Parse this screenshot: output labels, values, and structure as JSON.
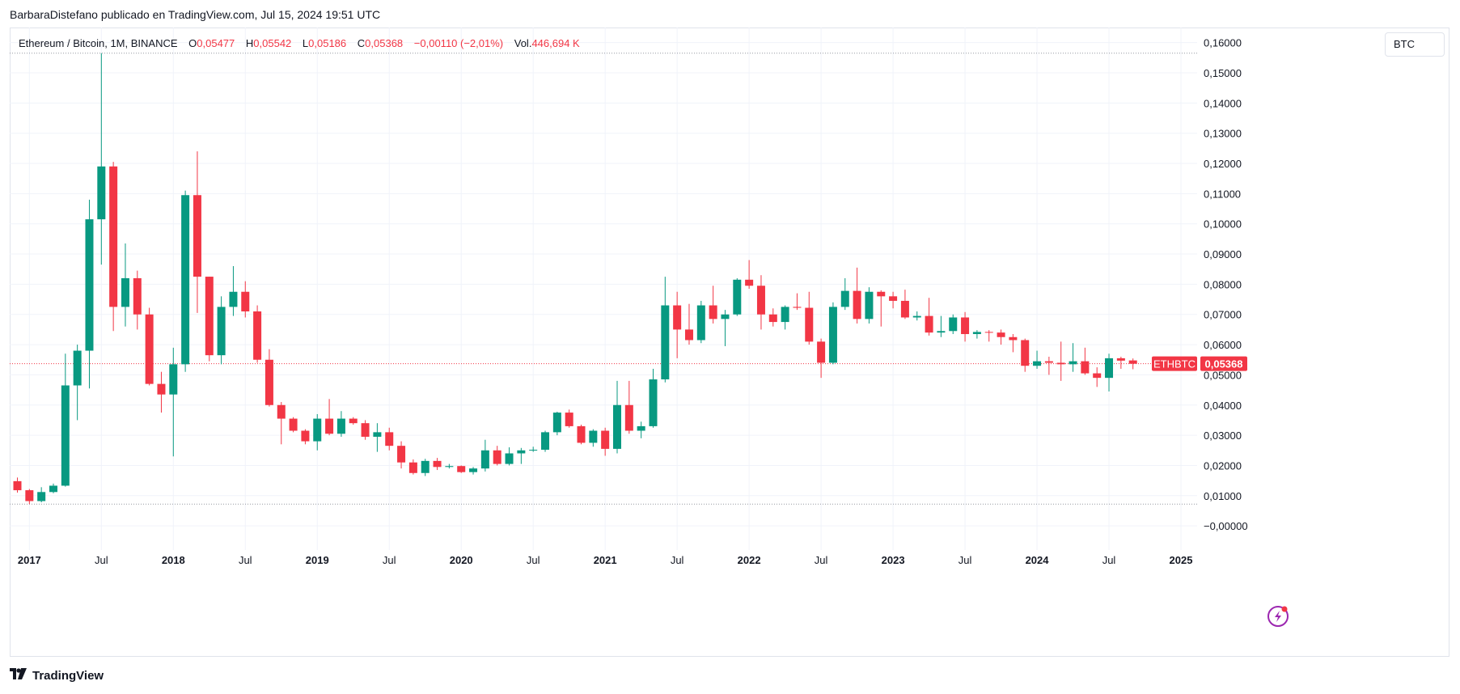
{
  "header": {
    "published_line": "BarbaraDistefano publicado en TradingView.com, Jul 15, 2024 19:51 UTC"
  },
  "legend": {
    "symbol": "Ethereum / Bitcoin, 1M, BINANCE",
    "open_label": "O",
    "open": "0,05477",
    "high_label": "H",
    "high": "0,05542",
    "low_label": "L",
    "low": "0,05186",
    "close_label": "C",
    "close": "0,05368",
    "change": "−0,00110 (−2,01%)",
    "volume_label": "Vol.",
    "volume": "446,694 K"
  },
  "currency": "BTC",
  "price_tag": {
    "symbol": "ETHBTC",
    "value": "0,05368"
  },
  "footer": {
    "brand": "TradingView"
  },
  "colors": {
    "up": "#089981",
    "down": "#f23645",
    "grid": "#f0f3fa",
    "axis_text": "#131722"
  },
  "chart_data": {
    "type": "candlestick",
    "interval": "1M",
    "ylim": [
      -0.008,
      0.165
    ],
    "y_ticks": [
      {
        "value": 0.16,
        "label": "0,16000"
      },
      {
        "value": 0.15,
        "label": "0,15000"
      },
      {
        "value": 0.14,
        "label": "0,14000"
      },
      {
        "value": 0.13,
        "label": "0,13000"
      },
      {
        "value": 0.12,
        "label": "0,12000"
      },
      {
        "value": 0.11,
        "label": "0,11000"
      },
      {
        "value": 0.1,
        "label": "0,10000"
      },
      {
        "value": 0.09,
        "label": "0,09000"
      },
      {
        "value": 0.08,
        "label": "0,08000"
      },
      {
        "value": 0.07,
        "label": "0,07000"
      },
      {
        "value": 0.06,
        "label": "0,06000"
      },
      {
        "value": 0.05,
        "label": "0,05000"
      },
      {
        "value": 0.04,
        "label": "0,04000"
      },
      {
        "value": 0.03,
        "label": "0,03000"
      },
      {
        "value": 0.02,
        "label": "0,02000"
      },
      {
        "value": 0.01,
        "label": "0,01000"
      },
      {
        "value": 0.0,
        "label": "−0,00000"
      }
    ],
    "x_ticks": [
      {
        "index": 1,
        "label": "2017",
        "bold": true
      },
      {
        "index": 7,
        "label": "Jul",
        "bold": false
      },
      {
        "index": 13,
        "label": "2018",
        "bold": true
      },
      {
        "index": 19,
        "label": "Jul",
        "bold": false
      },
      {
        "index": 25,
        "label": "2019",
        "bold": true
      },
      {
        "index": 31,
        "label": "Jul",
        "bold": false
      },
      {
        "index": 37,
        "label": "2020",
        "bold": true
      },
      {
        "index": 43,
        "label": "Jul",
        "bold": false
      },
      {
        "index": 49,
        "label": "2021",
        "bold": true
      },
      {
        "index": 55,
        "label": "Jul",
        "bold": false
      },
      {
        "index": 61,
        "label": "2022",
        "bold": true
      },
      {
        "index": 67,
        "label": "Jul",
        "bold": false
      },
      {
        "index": 73,
        "label": "2023",
        "bold": true
      },
      {
        "index": 79,
        "label": "Jul",
        "bold": false
      },
      {
        "index": 85,
        "label": "2024",
        "bold": true
      },
      {
        "index": 91,
        "label": "Jul",
        "bold": false
      },
      {
        "index": 97,
        "label": "2025",
        "bold": true
      }
    ],
    "high_marker": 0.1565,
    "low_marker": 0.0072,
    "last_price": 0.05368,
    "candles": [
      [
        0.0148,
        0.016,
        0.011,
        0.0118
      ],
      [
        0.0118,
        0.0122,
        0.0072,
        0.0082
      ],
      [
        0.0082,
        0.0128,
        0.0078,
        0.0112
      ],
      [
        0.0112,
        0.014,
        0.0108,
        0.0133
      ],
      [
        0.0133,
        0.057,
        0.013,
        0.0465
      ],
      [
        0.0465,
        0.06,
        0.035,
        0.058
      ],
      [
        0.058,
        0.108,
        0.0455,
        0.1015
      ],
      [
        0.1015,
        0.1565,
        0.0865,
        0.119
      ],
      [
        0.119,
        0.1205,
        0.0645,
        0.0725
      ],
      [
        0.0725,
        0.0935,
        0.066,
        0.082
      ],
      [
        0.082,
        0.0845,
        0.065,
        0.07
      ],
      [
        0.07,
        0.0722,
        0.0465,
        0.047
      ],
      [
        0.047,
        0.051,
        0.0375,
        0.0435
      ],
      [
        0.0435,
        0.059,
        0.023,
        0.0535
      ],
      [
        0.0535,
        0.111,
        0.051,
        0.1095
      ],
      [
        0.1095,
        0.124,
        0.0705,
        0.0825
      ],
      [
        0.0825,
        0.0825,
        0.0545,
        0.0565
      ],
      [
        0.0565,
        0.076,
        0.0535,
        0.0725
      ],
      [
        0.0725,
        0.086,
        0.0695,
        0.0775
      ],
      [
        0.0775,
        0.081,
        0.069,
        0.071
      ],
      [
        0.071,
        0.073,
        0.054,
        0.055
      ],
      [
        0.055,
        0.0585,
        0.0395,
        0.04
      ],
      [
        0.04,
        0.041,
        0.027,
        0.0355
      ],
      [
        0.0355,
        0.036,
        0.031,
        0.0315
      ],
      [
        0.0315,
        0.032,
        0.027,
        0.028
      ],
      [
        0.028,
        0.037,
        0.025,
        0.0355
      ],
      [
        0.0355,
        0.042,
        0.03,
        0.0305
      ],
      [
        0.0305,
        0.038,
        0.0295,
        0.0355
      ],
      [
        0.0355,
        0.036,
        0.0335,
        0.034
      ],
      [
        0.034,
        0.035,
        0.0285,
        0.0295
      ],
      [
        0.0295,
        0.034,
        0.0245,
        0.031
      ],
      [
        0.031,
        0.0325,
        0.025,
        0.0265
      ],
      [
        0.0265,
        0.028,
        0.019,
        0.021
      ],
      [
        0.021,
        0.022,
        0.017,
        0.0175
      ],
      [
        0.0175,
        0.0222,
        0.0165,
        0.0215
      ],
      [
        0.0215,
        0.0225,
        0.0185,
        0.0195
      ],
      [
        0.0195,
        0.0205,
        0.019,
        0.0198
      ],
      [
        0.0198,
        0.02,
        0.0175,
        0.0178
      ],
      [
        0.0178,
        0.0195,
        0.017,
        0.019
      ],
      [
        0.019,
        0.0285,
        0.018,
        0.025
      ],
      [
        0.025,
        0.0265,
        0.02,
        0.0205
      ],
      [
        0.0205,
        0.026,
        0.02,
        0.024
      ],
      [
        0.024,
        0.0258,
        0.0205,
        0.025
      ],
      [
        0.025,
        0.0262,
        0.0245,
        0.0252
      ],
      [
        0.0252,
        0.0315,
        0.0245,
        0.031
      ],
      [
        0.031,
        0.0378,
        0.03,
        0.0375
      ],
      [
        0.0375,
        0.0385,
        0.0325,
        0.033
      ],
      [
        0.033,
        0.0335,
        0.027,
        0.0275
      ],
      [
        0.0275,
        0.032,
        0.0262,
        0.0315
      ],
      [
        0.0315,
        0.0325,
        0.0232,
        0.0255
      ],
      [
        0.0255,
        0.048,
        0.024,
        0.04
      ],
      [
        0.04,
        0.048,
        0.0305,
        0.0315
      ],
      [
        0.0315,
        0.0345,
        0.029,
        0.033
      ],
      [
        0.033,
        0.052,
        0.0325,
        0.0485
      ],
      [
        0.0485,
        0.0825,
        0.0475,
        0.073
      ],
      [
        0.073,
        0.0775,
        0.0555,
        0.065
      ],
      [
        0.065,
        0.0735,
        0.06,
        0.0615
      ],
      [
        0.0615,
        0.0745,
        0.0605,
        0.073
      ],
      [
        0.073,
        0.0795,
        0.067,
        0.0685
      ],
      [
        0.0685,
        0.0715,
        0.0595,
        0.07
      ],
      [
        0.07,
        0.082,
        0.0695,
        0.0815
      ],
      [
        0.0815,
        0.088,
        0.0785,
        0.0795
      ],
      [
        0.0795,
        0.083,
        0.065,
        0.07
      ],
      [
        0.07,
        0.072,
        0.066,
        0.0675
      ],
      [
        0.0675,
        0.073,
        0.065,
        0.0725
      ],
      [
        0.0725,
        0.077,
        0.0715,
        0.0722
      ],
      [
        0.0722,
        0.0775,
        0.06,
        0.061
      ],
      [
        0.061,
        0.062,
        0.049,
        0.054
      ],
      [
        0.054,
        0.074,
        0.0535,
        0.0725
      ],
      [
        0.0725,
        0.082,
        0.0715,
        0.0778
      ],
      [
        0.0778,
        0.0855,
        0.067,
        0.0685
      ],
      [
        0.0685,
        0.079,
        0.067,
        0.0775
      ],
      [
        0.0775,
        0.078,
        0.066,
        0.076
      ],
      [
        0.076,
        0.0775,
        0.072,
        0.0745
      ],
      [
        0.0745,
        0.0782,
        0.0685,
        0.069
      ],
      [
        0.069,
        0.071,
        0.068,
        0.0695
      ],
      [
        0.0695,
        0.0755,
        0.063,
        0.064
      ],
      [
        0.064,
        0.0695,
        0.0625,
        0.0645
      ],
      [
        0.0645,
        0.07,
        0.0635,
        0.069
      ],
      [
        0.069,
        0.0708,
        0.061,
        0.0635
      ],
      [
        0.0635,
        0.0648,
        0.062,
        0.0642
      ],
      [
        0.0642,
        0.0648,
        0.061,
        0.064
      ],
      [
        0.064,
        0.065,
        0.06,
        0.0625
      ],
      [
        0.0625,
        0.0635,
        0.0575,
        0.0615
      ],
      [
        0.0615,
        0.062,
        0.051,
        0.053
      ],
      [
        0.053,
        0.058,
        0.052,
        0.0545
      ],
      [
        0.0545,
        0.056,
        0.05,
        0.054
      ],
      [
        0.054,
        0.061,
        0.048,
        0.0535
      ],
      [
        0.0535,
        0.0605,
        0.051,
        0.0545
      ],
      [
        0.0545,
        0.059,
        0.05,
        0.0505
      ],
      [
        0.0505,
        0.0525,
        0.046,
        0.049
      ],
      [
        0.049,
        0.057,
        0.0445,
        0.0555
      ],
      [
        0.0555,
        0.056,
        0.052,
        0.0547
      ],
      [
        0.05477,
        0.05542,
        0.05186,
        0.05368
      ]
    ]
  }
}
